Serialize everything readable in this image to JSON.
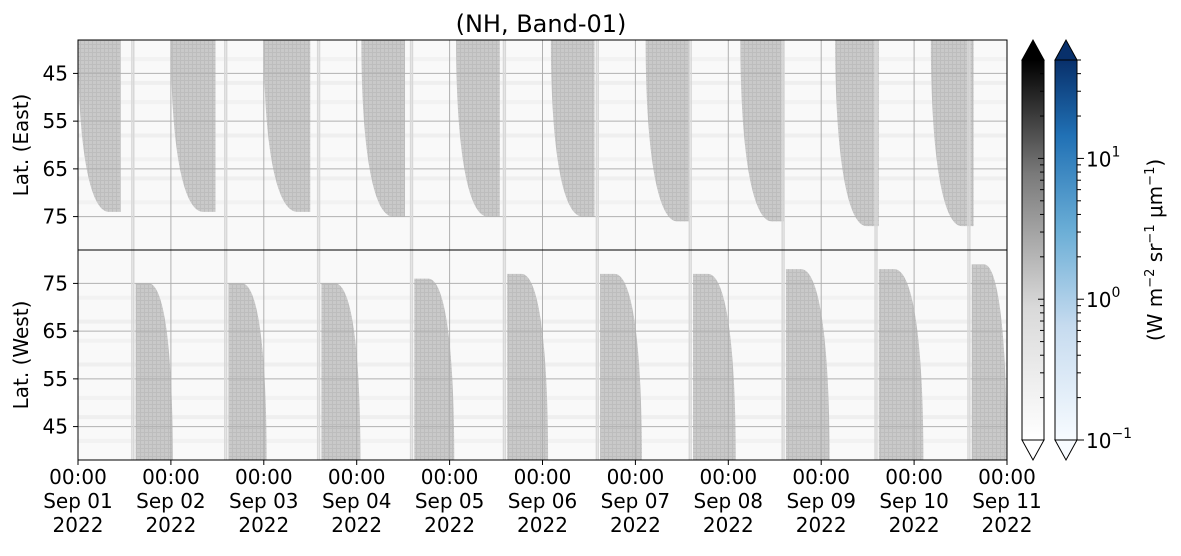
{
  "chart_data": {
    "type": "heatmap",
    "title": "(NH, Band-01)",
    "grid": true,
    "x_ticks": [
      {
        "time": "00:00",
        "date": "Sep 01",
        "year": "2022"
      },
      {
        "time": "00:00",
        "date": "Sep 02",
        "year": "2022"
      },
      {
        "time": "00:00",
        "date": "Sep 03",
        "year": "2022"
      },
      {
        "time": "00:00",
        "date": "Sep 04",
        "year": "2022"
      },
      {
        "time": "00:00",
        "date": "Sep 05",
        "year": "2022"
      },
      {
        "time": "00:00",
        "date": "Sep 06",
        "year": "2022"
      },
      {
        "time": "00:00",
        "date": "Sep 07",
        "year": "2022"
      },
      {
        "time": "00:00",
        "date": "Sep 08",
        "year": "2022"
      },
      {
        "time": "00:00",
        "date": "Sep 09",
        "year": "2022"
      },
      {
        "time": "00:00",
        "date": "Sep 10",
        "year": "2022"
      },
      {
        "time": "00:00",
        "date": "Sep 11",
        "year": "2022"
      }
    ],
    "xlim": [
      "2022-09-01 00:00",
      "2022-09-11 00:00"
    ],
    "panels": [
      {
        "name": "east",
        "ylabel": "Lat. (East)",
        "yticks": [
          45,
          55,
          65,
          75
        ],
        "ylim": [
          38,
          82
        ],
        "y_inverted": true
      },
      {
        "name": "west",
        "ylabel": "Lat. (West)",
        "yticks": [
          45,
          55,
          65,
          75
        ],
        "ylim": [
          38,
          82
        ],
        "y_inverted": false
      }
    ],
    "colorbars": [
      {
        "name": "gray",
        "scale": "log",
        "extend": "both"
      },
      {
        "name": "blue",
        "scale": "log",
        "extend": "both",
        "ticks": [
          {
            "base": "10",
            "exp": "−1"
          },
          {
            "base": "10",
            "exp": "0"
          },
          {
            "base": "10",
            "exp": "1"
          }
        ],
        "range": [
          0.1,
          50
        ]
      }
    ],
    "colorbar_label": {
      "a": "(W m",
      "b": "−2",
      "c": " sr",
      "d": "−1",
      "e": " μm",
      "f": "−1",
      "g": ")"
    },
    "east_lobes": [
      {
        "start_day": 0.0,
        "end_day": 0.46,
        "edge_lat": 74
      },
      {
        "start_day": 1.0,
        "end_day": 1.48,
        "edge_lat": 74
      },
      {
        "start_day": 2.0,
        "end_day": 2.5,
        "edge_lat": 74
      },
      {
        "start_day": 3.05,
        "end_day": 3.52,
        "edge_lat": 75
      },
      {
        "start_day": 4.07,
        "end_day": 4.54,
        "edge_lat": 75
      },
      {
        "start_day": 5.09,
        "end_day": 5.56,
        "edge_lat": 75
      },
      {
        "start_day": 6.11,
        "end_day": 6.58,
        "edge_lat": 76
      },
      {
        "start_day": 7.13,
        "end_day": 7.6,
        "edge_lat": 76
      },
      {
        "start_day": 8.15,
        "end_day": 8.62,
        "edge_lat": 77
      },
      {
        "start_day": 9.18,
        "end_day": 9.64,
        "edge_lat": 77
      }
    ],
    "west_lobes": [
      {
        "start_day": 0.62,
        "end_day": 1.02,
        "edge_lat": 75
      },
      {
        "start_day": 1.62,
        "end_day": 2.03,
        "edge_lat": 75
      },
      {
        "start_day": 2.62,
        "end_day": 3.04,
        "edge_lat": 75
      },
      {
        "start_day": 3.62,
        "end_day": 4.05,
        "edge_lat": 76
      },
      {
        "start_day": 4.62,
        "end_day": 5.06,
        "edge_lat": 77
      },
      {
        "start_day": 5.62,
        "end_day": 6.07,
        "edge_lat": 77
      },
      {
        "start_day": 6.62,
        "end_day": 7.08,
        "edge_lat": 77
      },
      {
        "start_day": 7.62,
        "end_day": 8.09,
        "edge_lat": 78
      },
      {
        "start_day": 8.62,
        "end_day": 9.1,
        "edge_lat": 78
      },
      {
        "start_day": 9.62,
        "end_day": 10.0,
        "edge_lat": 79
      }
    ]
  }
}
